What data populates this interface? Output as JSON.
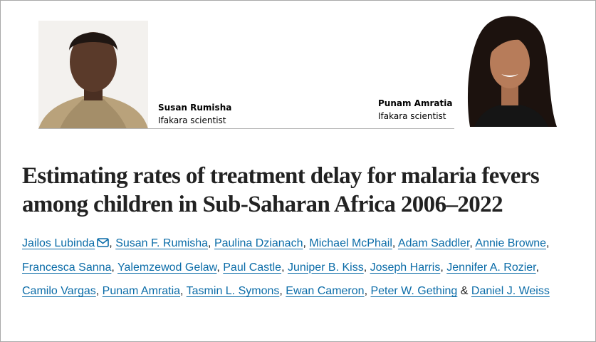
{
  "people": [
    {
      "name": "Susan Rumisha",
      "role": "Ifakara scientist"
    },
    {
      "name": "Punam Amratia",
      "role": "Ifakara scientist"
    }
  ],
  "article": {
    "title": "Estimating rates of treatment delay for malaria fevers among children in Sub-Saharan Africa 2006–2022",
    "authors": [
      "Jailos Lubinda",
      "Susan F. Rumisha",
      "Paulina Dzianach",
      "Michael McPhail",
      "Adam Saddler",
      "Annie Browne",
      "Francesca Sanna",
      "Yalemzewod Gelaw",
      "Paul Castle",
      "Juniper B. Kiss",
      "Joseph Harris",
      "Jennifer A. Rozier",
      "Camilo Vargas",
      "Punam Amratia",
      "Tasmin L. Symons",
      "Ewan Cameron",
      "Peter W. Gething",
      "Daniel J. Weiss"
    ],
    "separator": ",",
    "conjunction": "&"
  }
}
